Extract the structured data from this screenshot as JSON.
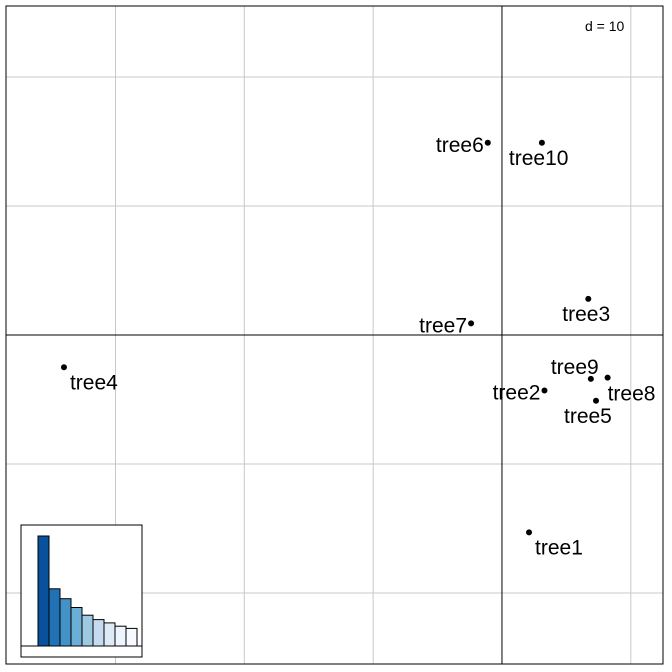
{
  "chart_data": {
    "type": "scatter",
    "title": "",
    "xlabel": "",
    "ylabel": "",
    "scale_label": "d = 10",
    "grid": true,
    "grid_step": 10,
    "xlim": [
      -38.5,
      12.5
    ],
    "ylim": [
      -25.5,
      25.5
    ],
    "points": [
      {
        "label": "tree1",
        "x": 2.1,
        "y": -15.3
      },
      {
        "label": "tree2",
        "x": 3.3,
        "y": -4.3
      },
      {
        "label": "tree3",
        "x": 6.7,
        "y": 2.8
      },
      {
        "label": "tree4",
        "x": -34.0,
        "y": -2.5
      },
      {
        "label": "tree5",
        "x": 7.3,
        "y": -5.1
      },
      {
        "label": "tree6",
        "x": -1.1,
        "y": 14.9
      },
      {
        "label": "tree7",
        "x": -2.4,
        "y": 0.9
      },
      {
        "label": "tree8",
        "x": 8.2,
        "y": -3.3
      },
      {
        "label": "tree9",
        "x": 6.9,
        "y": -3.4
      },
      {
        "label": "tree10",
        "x": 3.1,
        "y": 14.9
      }
    ],
    "eigenvalues": {
      "values": [
        100,
        52,
        43,
        35,
        28,
        24,
        21,
        18,
        16
      ],
      "colors": [
        "#08519c",
        "#2171b5",
        "#4292c6",
        "#6baed6",
        "#9ecae1",
        "#c6dbef",
        "#deebf7",
        "#eef5fc",
        "#f7fbff"
      ]
    }
  }
}
